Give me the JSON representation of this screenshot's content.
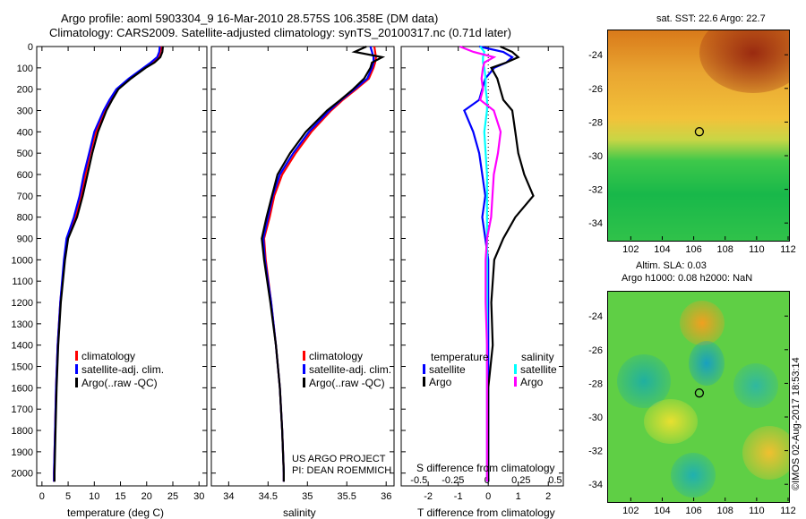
{
  "title_line1": "Argo profile: aoml 5903304_9 16-Mar-2010 28.575S 106.358E (DM data)",
  "title_line2": "Climatology: CARS2009. Satellite-adjusted climatology: synTS_20100317.nc (0.71d later)",
  "colors": {
    "climatology": "#ff0000",
    "satellite": "#0000ff",
    "argo": "#000000",
    "sal_satellite": "#00ffff",
    "sal_argo": "#ff00ff"
  },
  "chart_data": [
    {
      "type": "line",
      "name": "temperature",
      "xlabel": "temperature (deg C)",
      "xlim": [
        -1,
        31.5
      ],
      "ylim": [
        2060,
        0
      ],
      "xticks": [
        0,
        5,
        10,
        15,
        20,
        25,
        30
      ],
      "yticks": [
        0,
        100,
        200,
        300,
        400,
        500,
        600,
        700,
        800,
        900,
        1000,
        1100,
        1200,
        1300,
        1400,
        1500,
        1600,
        1700,
        1800,
        1900,
        2000
      ],
      "depth": [
        0,
        25,
        50,
        75,
        100,
        150,
        200,
        250,
        300,
        400,
        500,
        600,
        700,
        800,
        900,
        1000,
        1200,
        1400,
        1600,
        1800,
        2000,
        2040
      ],
      "series": [
        {
          "name": "climatology",
          "values": [
            22.8,
            22.6,
            22.2,
            21.0,
            19.6,
            16.8,
            14.4,
            13.0,
            12.0,
            10.3,
            9.2,
            8.3,
            7.5,
            6.4,
            4.8,
            4.3,
            3.5,
            3.0,
            2.7,
            2.5,
            2.3,
            2.3
          ]
        },
        {
          "name": "satellite-adj. clim.",
          "values": [
            22.5,
            22.4,
            22.0,
            20.8,
            19.4,
            16.6,
            14.2,
            12.9,
            11.8,
            10.0,
            9.0,
            8.0,
            7.2,
            6.1,
            4.7,
            4.2,
            3.5,
            3.0,
            2.7,
            2.5,
            2.3,
            2.3
          ]
        },
        {
          "name": "Argo(..raw -QC)",
          "values": [
            23.1,
            23.0,
            22.6,
            21.5,
            19.8,
            17.0,
            14.6,
            13.4,
            12.3,
            10.7,
            9.6,
            8.7,
            7.8,
            6.7,
            5.0,
            4.4,
            3.6,
            3.1,
            2.8,
            2.6,
            2.4,
            2.4
          ]
        }
      ],
      "legend": [
        "climatology",
        "satellite-adj. clim.",
        "Argo(..raw -QC)"
      ]
    },
    {
      "type": "line",
      "name": "salinity",
      "xlabel": "salinity",
      "xlim": [
        33.78,
        36.1
      ],
      "ylim": [
        2060,
        0
      ],
      "xticks": [
        34,
        34.5,
        35,
        35.5,
        36
      ],
      "depth": [
        0,
        25,
        50,
        75,
        100,
        150,
        200,
        250,
        300,
        400,
        500,
        600,
        700,
        800,
        900,
        1000,
        1200,
        1400,
        1600,
        1800,
        2000,
        2040
      ],
      "series": [
        {
          "name": "climatology",
          "values": [
            35.85,
            35.86,
            35.87,
            35.86,
            35.84,
            35.78,
            35.62,
            35.45,
            35.3,
            35.05,
            34.85,
            34.68,
            34.58,
            34.52,
            34.45,
            34.47,
            34.54,
            34.6,
            34.65,
            34.68,
            34.7,
            34.7
          ]
        },
        {
          "name": "satellite-adj. clim.",
          "values": [
            35.8,
            35.82,
            35.84,
            35.84,
            35.82,
            35.76,
            35.6,
            35.43,
            35.28,
            35.02,
            34.82,
            34.65,
            34.56,
            34.5,
            34.44,
            34.46,
            34.54,
            34.6,
            34.65,
            34.68,
            34.7,
            34.7
          ]
        },
        {
          "name": "Argo(..raw -QC)",
          "values": [
            35.75,
            35.6,
            35.95,
            35.82,
            35.8,
            35.72,
            35.58,
            35.42,
            35.25,
            34.98,
            34.78,
            34.62,
            34.55,
            34.48,
            34.42,
            34.45,
            34.53,
            34.6,
            34.65,
            34.68,
            34.7,
            34.7
          ]
        }
      ],
      "legend": [
        "climatology",
        "satellite-adj. clim.",
        "Argo(..raw -QC)"
      ],
      "annotation": [
        "US ARGO PROJECT",
        "PI: DEAN ROEMMICH"
      ]
    },
    {
      "type": "line",
      "name": "differences",
      "xlabel": "T difference from climatology",
      "x2label": "S difference from climatology",
      "xlim": [
        -2.9,
        2.5
      ],
      "x2lim": [
        -0.63,
        0.56
      ],
      "ylim": [
        2060,
        0
      ],
      "xticks": [
        -2,
        -1,
        0,
        1,
        2
      ],
      "x2ticks": [
        -0.5,
        -0.25,
        0,
        0.25,
        0.5
      ],
      "depth": [
        0,
        25,
        50,
        75,
        100,
        150,
        200,
        250,
        300,
        400,
        500,
        600,
        700,
        800,
        900,
        1000,
        1200,
        1400,
        1600,
        1800,
        2000,
        2040
      ],
      "series": [
        {
          "name": "T satellite",
          "axis": "T",
          "values": [
            -0.3,
            0.5,
            0.8,
            0.6,
            0.2,
            -0.1,
            -0.2,
            -0.3,
            -0.8,
            -0.5,
            -0.3,
            -0.2,
            -0.1,
            -0.2,
            -0.1,
            0,
            0,
            0,
            0,
            0,
            0,
            0
          ]
        },
        {
          "name": "T Argo",
          "axis": "T",
          "values": [
            0.4,
            0.8,
            1.0,
            0.6,
            0.1,
            0.3,
            0.4,
            0.5,
            0.8,
            0.9,
            1.0,
            1.2,
            1.5,
            0.9,
            0.5,
            0.2,
            0.1,
            0.15,
            0,
            0,
            0,
            0
          ]
        },
        {
          "name": "S satellite",
          "axis": "S",
          "values": [
            -0.05,
            -0.02,
            -0.03,
            -0.03,
            -0.02,
            -0.01,
            -0.01,
            0,
            0,
            -0.02,
            -0.01,
            0,
            0,
            0,
            0,
            0,
            0,
            0,
            0,
            0,
            0,
            0
          ]
        },
        {
          "name": "S Argo",
          "axis": "S",
          "values": [
            -0.2,
            -0.1,
            0.05,
            -0.02,
            -0.03,
            -0.04,
            -0.03,
            -0.05,
            0.05,
            0.1,
            0.08,
            0.05,
            0.04,
            0.03,
            0,
            -0.01,
            -0.01,
            0,
            0,
            0,
            0,
            0
          ]
        }
      ],
      "legend_temperature": {
        "title": "temperature",
        "items": [
          "satellite",
          "Argo"
        ]
      },
      "legend_salinity": {
        "title": "salinity",
        "items": [
          "satellite",
          "Argo"
        ]
      }
    },
    {
      "type": "heatmap",
      "name": "sst_map",
      "title": "sat. SST: 22.6 Argo: 22.7",
      "xticks": [
        102,
        104,
        106,
        108,
        110,
        112
      ],
      "yticks": [
        -24,
        -26,
        -28,
        -30,
        -32,
        -34
      ],
      "xlim": [
        100.5,
        112
      ],
      "ylim": [
        -35,
        -22.5
      ],
      "marker": [
        106.358,
        -28.575
      ]
    },
    {
      "type": "heatmap",
      "name": "sla_map",
      "title1": "Altim. SLA: 0.03",
      "title2": "Argo h1000: 0.08 h2000: NaN",
      "xticks": [
        102,
        104,
        106,
        108,
        110,
        112
      ],
      "yticks": [
        -24,
        -26,
        -28,
        -30,
        -32,
        -34
      ],
      "xlim": [
        100.5,
        112
      ],
      "ylim": [
        -35,
        -22.5
      ],
      "marker": [
        106.358,
        -28.575
      ]
    }
  ],
  "side_stamp": "©IMOS 02-Aug-2017 18:53:14"
}
